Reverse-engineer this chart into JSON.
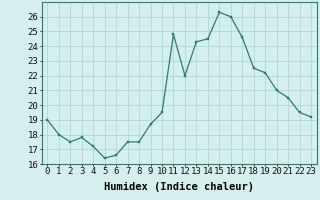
{
  "x": [
    0,
    1,
    2,
    3,
    4,
    5,
    6,
    7,
    8,
    9,
    10,
    11,
    12,
    13,
    14,
    15,
    16,
    17,
    18,
    19,
    20,
    21,
    22,
    23
  ],
  "y": [
    19,
    18,
    17.5,
    17.8,
    17.2,
    16.4,
    16.6,
    17.5,
    17.5,
    18.7,
    19.5,
    24.8,
    22.0,
    24.3,
    24.5,
    26.3,
    26.0,
    24.6,
    22.5,
    22.2,
    21.0,
    20.5,
    19.5,
    19.2
  ],
  "line_color": "#2d7d6e",
  "marker_color": "#2d7d6e",
  "bg_color": "#d5eeee",
  "grid_color": "#b0d8d8",
  "xlabel": "Humidex (Indice chaleur)",
  "ylim": [
    16,
    27
  ],
  "yticks": [
    16,
    17,
    18,
    19,
    20,
    21,
    22,
    23,
    24,
    25,
    26
  ],
  "xticks": [
    0,
    1,
    2,
    3,
    4,
    5,
    6,
    7,
    8,
    9,
    10,
    11,
    12,
    13,
    14,
    15,
    16,
    17,
    18,
    19,
    20,
    21,
    22,
    23
  ],
  "xlabel_fontsize": 7.5,
  "tick_fontsize": 6.5
}
